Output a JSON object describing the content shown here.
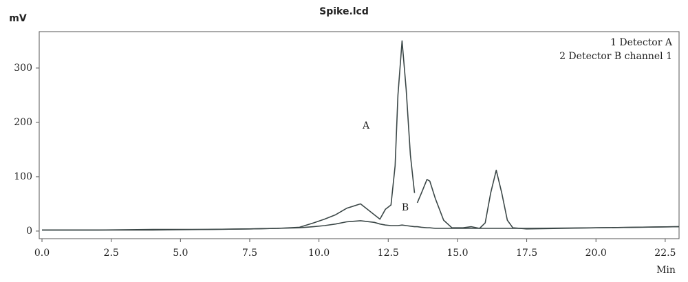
{
  "chart_data": {
    "type": "line",
    "title": "Spike.lcd",
    "y_label": "mV",
    "x_label": "Min",
    "annotations": [
      "A",
      "B"
    ],
    "x": [
      0,
      2,
      4,
      6,
      7.5,
      8.5,
      9.3,
      9.8,
      10.2,
      10.6,
      11.0,
      11.5,
      12.0,
      12.2,
      12.4,
      12.6,
      12.75,
      12.85,
      13.0,
      13.15,
      13.3,
      13.45,
      13.5,
      13.55,
      13.7,
      13.9,
      14.0,
      14.2,
      14.5,
      14.8,
      15.2,
      15.5,
      15.8,
      16.0,
      16.2,
      16.4,
      16.6,
      16.8,
      17.0,
      17.5,
      20,
      23
    ],
    "series": [
      {
        "name": "1 Detector A",
        "color": "#3b4747",
        "values": [
          2,
          2,
          3,
          3,
          4,
          5,
          7,
          15,
          22,
          30,
          42,
          50,
          30,
          22,
          40,
          48,
          120,
          250,
          350,
          260,
          140,
          70,
          null,
          52,
          70,
          95,
          92,
          60,
          20,
          6,
          6,
          8,
          5,
          15,
          70,
          112,
          70,
          20,
          6,
          4,
          6,
          8
        ]
      },
      {
        "name": "2 Detector B channel 1",
        "color": "#3b4747",
        "values": [
          2,
          2,
          2,
          3,
          4,
          5,
          6,
          8,
          10,
          13,
          17,
          19,
          16,
          13,
          11,
          10,
          10,
          10,
          11,
          10,
          9,
          8,
          8,
          8,
          7,
          6,
          6,
          5,
          5,
          5,
          5,
          5,
          5,
          5,
          5,
          5,
          5,
          5,
          5,
          5,
          6,
          8
        ]
      }
    ],
    "xlim": [
      -0.1,
      23.0
    ],
    "ylim": [
      -14,
      367
    ],
    "xticks": [
      {
        "value": 0,
        "label": "0.0"
      },
      2.5,
      {
        "value": 5,
        "label": "5.0"
      },
      7.5,
      {
        "value": 10,
        "label": "10.0"
      },
      12.5,
      {
        "value": 15,
        "label": "15.0"
      },
      17.5,
      {
        "value": 20,
        "label": "20.0"
      },
      22.5
    ],
    "yticks": [
      0,
      100,
      200,
      300
    ],
    "grid": false,
    "legend": "upper right"
  }
}
